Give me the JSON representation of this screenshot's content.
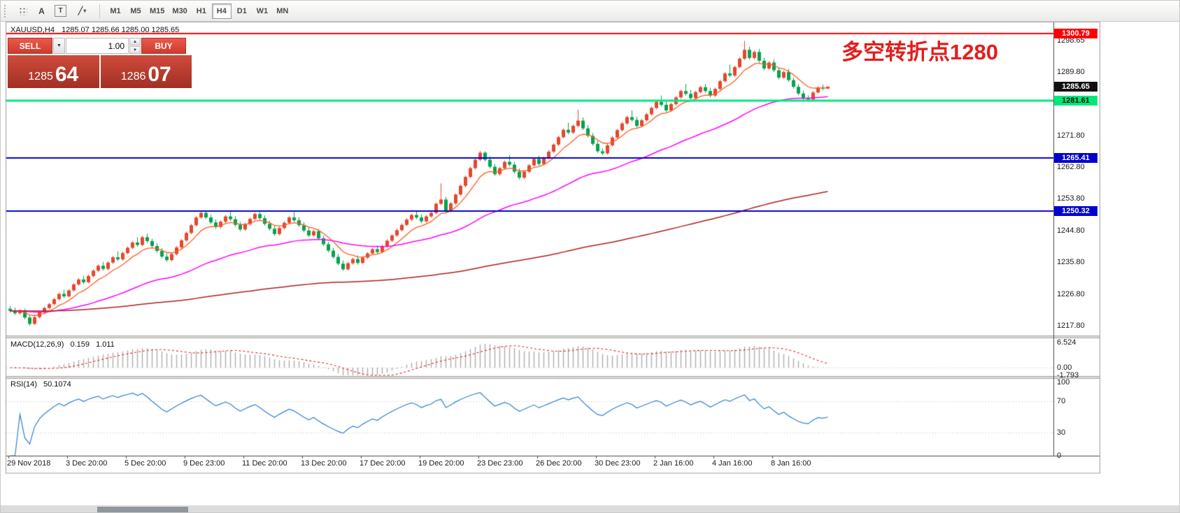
{
  "toolbar": {
    "tools": {
      "text_a": "A",
      "text_t": "T"
    },
    "timeframes": [
      {
        "label": "M1",
        "active": false
      },
      {
        "label": "M5",
        "active": false
      },
      {
        "label": "M15",
        "active": false
      },
      {
        "label": "M30",
        "active": false
      },
      {
        "label": "H1",
        "active": false
      },
      {
        "label": "H4",
        "active": true
      },
      {
        "label": "D1",
        "active": false
      },
      {
        "label": "W1",
        "active": false
      },
      {
        "label": "MN",
        "active": false
      }
    ]
  },
  "icons": {
    "dropdown_caret": "▼",
    "spinner_up": "▲",
    "spinner_down": "▼",
    "shapes_line": "╱",
    "shapes_caret": "▾"
  },
  "one_click": {
    "sell_label": "SELL",
    "buy_label": "BUY",
    "lot_value": "1.00",
    "sell_price_main": "1285",
    "sell_price_pips": "64",
    "buy_price_main": "1286",
    "buy_price_pips": "07"
  },
  "chart_data": {
    "type": "candlestick",
    "symbol": "XAUUSD",
    "timeframe": "H4",
    "window_title": "XAUUSD,H4",
    "ohlc_text": "1285.07 1285.66 1285.00 1285.65",
    "annotation": {
      "text": "多空转折点1280",
      "color": "#e51c1c"
    },
    "ylim": [
      1215.0,
      1303.5
    ],
    "y_tick_labels": [
      "1298.65",
      "1289.80",
      "1280.80",
      "1271.80",
      "1262.80",
      "1253.80",
      "1244.80",
      "1235.80",
      "1226.80",
      "1217.80"
    ],
    "x_tick_labels": [
      {
        "index": 0,
        "label": "29 Nov 2018"
      },
      {
        "index": 12,
        "label": "3 Dec 20:00"
      },
      {
        "index": 24,
        "label": "5 Dec 20:00"
      },
      {
        "index": 36,
        "label": "9 Dec 23:00"
      },
      {
        "index": 48,
        "label": "11 Dec 20:00"
      },
      {
        "index": 60,
        "label": "13 Dec 20:00"
      },
      {
        "index": 72,
        "label": "17 Dec 20:00"
      },
      {
        "index": 84,
        "label": "19 Dec 20:00"
      },
      {
        "index": 96,
        "label": "23 Dec 23:00"
      },
      {
        "index": 108,
        "label": "26 Dec 20:00"
      },
      {
        "index": 120,
        "label": "30 Dec 23:00"
      },
      {
        "index": 132,
        "label": "2 Jan 16:00"
      },
      {
        "index": 144,
        "label": "4 Jan 16:00"
      },
      {
        "index": 156,
        "label": "8 Jan 16:00"
      }
    ],
    "up_color": "#e5472e",
    "down_color": "#07a24e",
    "candles": [
      [
        1222.6,
        1223.4,
        1221.5,
        1222.0
      ],
      [
        1222.0,
        1222.9,
        1220.8,
        1221.3
      ],
      [
        1221.3,
        1222.5,
        1220.9,
        1222.1
      ],
      [
        1222.1,
        1222.6,
        1219.6,
        1220.1
      ],
      [
        1220.1,
        1220.7,
        1217.8,
        1218.3
      ],
      [
        1218.3,
        1220.6,
        1218.0,
        1220.2
      ],
      [
        1220.2,
        1222.0,
        1219.8,
        1221.6
      ],
      [
        1221.6,
        1223.2,
        1221.2,
        1222.8
      ],
      [
        1222.8,
        1224.3,
        1222.4,
        1223.9
      ],
      [
        1223.9,
        1225.7,
        1223.5,
        1225.3
      ],
      [
        1225.3,
        1227.2,
        1224.9,
        1226.8
      ],
      [
        1226.8,
        1228.0,
        1225.6,
        1226.1
      ],
      [
        1226.1,
        1228.2,
        1225.8,
        1227.8
      ],
      [
        1227.8,
        1229.9,
        1227.4,
        1229.5
      ],
      [
        1229.5,
        1231.3,
        1229.1,
        1230.9
      ],
      [
        1230.9,
        1232.0,
        1229.6,
        1230.1
      ],
      [
        1230.1,
        1232.3,
        1229.8,
        1231.9
      ],
      [
        1231.9,
        1233.8,
        1231.5,
        1233.4
      ],
      [
        1233.4,
        1235.2,
        1233.0,
        1234.8
      ],
      [
        1234.8,
        1235.9,
        1233.4,
        1233.9
      ],
      [
        1233.9,
        1236.1,
        1233.5,
        1235.7
      ],
      [
        1235.7,
        1237.6,
        1235.3,
        1237.2
      ],
      [
        1237.2,
        1238.9,
        1236.1,
        1236.6
      ],
      [
        1236.6,
        1238.8,
        1236.2,
        1238.4
      ],
      [
        1238.4,
        1240.3,
        1238.0,
        1239.9
      ],
      [
        1239.9,
        1241.8,
        1239.5,
        1241.4
      ],
      [
        1241.4,
        1242.9,
        1240.2,
        1240.7
      ],
      [
        1240.7,
        1243.3,
        1240.3,
        1242.9
      ],
      [
        1242.9,
        1243.9,
        1241.3,
        1241.8
      ],
      [
        1241.8,
        1242.5,
        1239.9,
        1240.4
      ],
      [
        1240.4,
        1241.2,
        1238.5,
        1239.0
      ],
      [
        1239.0,
        1239.8,
        1236.9,
        1237.4
      ],
      [
        1237.4,
        1238.3,
        1235.9,
        1236.4
      ],
      [
        1236.4,
        1238.5,
        1236.0,
        1238.1
      ],
      [
        1238.1,
        1240.4,
        1237.7,
        1240.0
      ],
      [
        1240.0,
        1242.4,
        1239.6,
        1242.0
      ],
      [
        1242.0,
        1244.5,
        1241.6,
        1244.1
      ],
      [
        1244.1,
        1246.7,
        1243.7,
        1246.3
      ],
      [
        1246.3,
        1248.9,
        1245.9,
        1248.5
      ],
      [
        1248.5,
        1250.2,
        1248.1,
        1249.8
      ],
      [
        1249.8,
        1250.3,
        1248.0,
        1248.5
      ],
      [
        1248.5,
        1249.3,
        1246.6,
        1247.1
      ],
      [
        1247.1,
        1248.0,
        1245.3,
        1245.8
      ],
      [
        1245.8,
        1247.7,
        1245.4,
        1247.3
      ],
      [
        1247.3,
        1249.2,
        1246.9,
        1248.8
      ],
      [
        1248.8,
        1250.1,
        1247.5,
        1248.0
      ],
      [
        1248.0,
        1248.9,
        1245.9,
        1246.4
      ],
      [
        1246.4,
        1247.3,
        1244.6,
        1245.1
      ],
      [
        1245.1,
        1247.0,
        1244.7,
        1246.6
      ],
      [
        1246.6,
        1248.5,
        1246.2,
        1248.1
      ],
      [
        1248.1,
        1249.9,
        1247.7,
        1249.5
      ],
      [
        1249.5,
        1250.2,
        1247.8,
        1248.3
      ],
      [
        1248.3,
        1249.1,
        1246.2,
        1246.7
      ],
      [
        1246.7,
        1247.6,
        1244.8,
        1245.3
      ],
      [
        1245.3,
        1246.1,
        1243.3,
        1243.8
      ],
      [
        1243.8,
        1245.9,
        1243.4,
        1245.5
      ],
      [
        1245.5,
        1247.4,
        1245.1,
        1247.0
      ],
      [
        1247.0,
        1248.9,
        1246.6,
        1248.5
      ],
      [
        1248.5,
        1250.0,
        1247.2,
        1247.7
      ],
      [
        1247.7,
        1248.5,
        1245.8,
        1246.3
      ],
      [
        1246.3,
        1247.1,
        1244.3,
        1244.8
      ],
      [
        1244.8,
        1245.7,
        1242.9,
        1243.4
      ],
      [
        1243.4,
        1245.0,
        1243.0,
        1244.6
      ],
      [
        1244.6,
        1245.2,
        1242.1,
        1242.6
      ],
      [
        1242.6,
        1243.3,
        1240.4,
        1240.9
      ],
      [
        1240.9,
        1241.6,
        1238.6,
        1239.1
      ],
      [
        1239.1,
        1239.9,
        1236.8,
        1237.3
      ],
      [
        1237.3,
        1238.1,
        1234.9,
        1235.4
      ],
      [
        1235.4,
        1236.3,
        1233.3,
        1233.8
      ],
      [
        1233.8,
        1235.9,
        1233.4,
        1235.5
      ],
      [
        1235.5,
        1237.1,
        1235.1,
        1236.7
      ],
      [
        1236.7,
        1237.7,
        1235.1,
        1235.6
      ],
      [
        1235.6,
        1237.5,
        1235.2,
        1237.1
      ],
      [
        1237.1,
        1238.7,
        1236.7,
        1238.3
      ],
      [
        1238.3,
        1239.9,
        1237.9,
        1239.5
      ],
      [
        1239.5,
        1240.6,
        1238.2,
        1238.7
      ],
      [
        1238.7,
        1240.8,
        1238.3,
        1240.4
      ],
      [
        1240.4,
        1242.3,
        1240.0,
        1241.9
      ],
      [
        1241.9,
        1243.8,
        1241.5,
        1243.4
      ],
      [
        1243.4,
        1245.3,
        1243.0,
        1244.9
      ],
      [
        1244.9,
        1246.8,
        1244.5,
        1246.4
      ],
      [
        1246.4,
        1248.3,
        1246.0,
        1247.9
      ],
      [
        1247.9,
        1249.6,
        1247.5,
        1249.2
      ],
      [
        1249.2,
        1250.3,
        1248.0,
        1248.5
      ],
      [
        1248.5,
        1249.4,
        1246.9,
        1247.4
      ],
      [
        1247.4,
        1249.2,
        1247.0,
        1248.8
      ],
      [
        1248.8,
        1250.2,
        1248.4,
        1249.8
      ],
      [
        1249.8,
        1252.8,
        1249.4,
        1252.4
      ],
      [
        1252.4,
        1258.2,
        1252.0,
        1253.6
      ],
      [
        1253.6,
        1254.4,
        1249.9,
        1250.4
      ],
      [
        1250.4,
        1252.9,
        1250.0,
        1252.5
      ],
      [
        1252.5,
        1255.4,
        1252.1,
        1255.0
      ],
      [
        1255.0,
        1257.9,
        1254.6,
        1257.5
      ],
      [
        1257.5,
        1260.4,
        1257.1,
        1260.0
      ],
      [
        1260.0,
        1262.9,
        1259.6,
        1262.5
      ],
      [
        1262.5,
        1265.3,
        1262.1,
        1264.9
      ],
      [
        1264.9,
        1267.4,
        1264.5,
        1266.9
      ],
      [
        1266.9,
        1267.3,
        1264.4,
        1264.9
      ],
      [
        1264.9,
        1265.8,
        1262.4,
        1262.9
      ],
      [
        1262.9,
        1263.7,
        1260.3,
        1260.8
      ],
      [
        1260.8,
        1262.9,
        1260.4,
        1262.5
      ],
      [
        1262.5,
        1264.7,
        1262.1,
        1264.3
      ],
      [
        1264.3,
        1266.2,
        1263.0,
        1263.5
      ],
      [
        1263.5,
        1264.3,
        1261.0,
        1261.5
      ],
      [
        1261.5,
        1262.4,
        1259.3,
        1259.8
      ],
      [
        1259.8,
        1261.9,
        1259.4,
        1261.5
      ],
      [
        1261.5,
        1263.7,
        1261.1,
        1263.3
      ],
      [
        1263.3,
        1265.5,
        1262.9,
        1265.1
      ],
      [
        1265.1,
        1266.0,
        1263.2,
        1263.7
      ],
      [
        1263.7,
        1265.8,
        1263.3,
        1265.4
      ],
      [
        1265.4,
        1267.6,
        1265.0,
        1267.2
      ],
      [
        1267.2,
        1269.6,
        1266.8,
        1269.2
      ],
      [
        1269.2,
        1271.7,
        1268.8,
        1271.3
      ],
      [
        1271.3,
        1273.8,
        1270.9,
        1273.4
      ],
      [
        1273.4,
        1275.4,
        1272.1,
        1272.6
      ],
      [
        1272.6,
        1274.9,
        1272.2,
        1274.5
      ],
      [
        1274.5,
        1279.1,
        1274.1,
        1276.0
      ],
      [
        1276.0,
        1276.9,
        1273.3,
        1273.8
      ],
      [
        1273.8,
        1274.7,
        1271.2,
        1271.7
      ],
      [
        1271.7,
        1272.5,
        1268.9,
        1269.4
      ],
      [
        1269.4,
        1270.3,
        1266.8,
        1267.3
      ],
      [
        1267.3,
        1268.1,
        1266.2,
        1266.7
      ],
      [
        1266.7,
        1269.4,
        1266.3,
        1269.0
      ],
      [
        1269.0,
        1271.6,
        1268.6,
        1271.2
      ],
      [
        1271.2,
        1273.7,
        1270.8,
        1273.3
      ],
      [
        1273.3,
        1275.6,
        1272.9,
        1275.2
      ],
      [
        1275.2,
        1277.4,
        1274.8,
        1277.0
      ],
      [
        1277.0,
        1278.9,
        1275.7,
        1276.2
      ],
      [
        1276.2,
        1277.1,
        1274.0,
        1274.5
      ],
      [
        1274.5,
        1276.5,
        1274.1,
        1276.1
      ],
      [
        1276.1,
        1278.2,
        1275.7,
        1277.8
      ],
      [
        1277.8,
        1280.0,
        1277.4,
        1279.6
      ],
      [
        1279.6,
        1281.7,
        1279.2,
        1281.3
      ],
      [
        1281.3,
        1283.1,
        1280.0,
        1280.5
      ],
      [
        1280.5,
        1281.6,
        1278.4,
        1278.9
      ],
      [
        1278.9,
        1281.1,
        1278.5,
        1280.7
      ],
      [
        1280.7,
        1283.0,
        1280.3,
        1282.6
      ],
      [
        1282.6,
        1284.8,
        1282.2,
        1284.4
      ],
      [
        1284.4,
        1286.4,
        1283.1,
        1283.6
      ],
      [
        1283.6,
        1284.7,
        1281.9,
        1282.4
      ],
      [
        1282.4,
        1284.5,
        1282.0,
        1284.1
      ],
      [
        1284.1,
        1285.9,
        1283.7,
        1285.5
      ],
      [
        1285.5,
        1286.4,
        1283.9,
        1284.4
      ],
      [
        1284.4,
        1285.3,
        1282.6,
        1283.1
      ],
      [
        1283.1,
        1285.4,
        1282.7,
        1285.0
      ],
      [
        1285.0,
        1287.6,
        1284.6,
        1287.2
      ],
      [
        1287.2,
        1289.8,
        1286.8,
        1289.4
      ],
      [
        1289.4,
        1291.9,
        1288.3,
        1288.8
      ],
      [
        1288.8,
        1291.6,
        1288.4,
        1291.2
      ],
      [
        1291.2,
        1294.0,
        1290.8,
        1293.6
      ],
      [
        1293.6,
        1298.65,
        1293.2,
        1296.1
      ],
      [
        1296.1,
        1297.0,
        1293.3,
        1293.8
      ],
      [
        1293.8,
        1295.9,
        1293.4,
        1295.5
      ],
      [
        1295.5,
        1296.3,
        1292.5,
        1293.0
      ],
      [
        1293.0,
        1293.9,
        1290.3,
        1290.8
      ],
      [
        1290.8,
        1292.9,
        1290.4,
        1292.5
      ],
      [
        1292.5,
        1293.4,
        1289.8,
        1290.3
      ],
      [
        1290.3,
        1291.1,
        1287.7,
        1288.2
      ],
      [
        1288.2,
        1290.2,
        1287.8,
        1289.8
      ],
      [
        1289.8,
        1290.7,
        1287.0,
        1287.5
      ],
      [
        1287.5,
        1288.3,
        1285.1,
        1285.6
      ],
      [
        1285.6,
        1286.4,
        1283.2,
        1283.7
      ],
      [
        1283.7,
        1284.5,
        1281.9,
        1282.4
      ],
      [
        1282.4,
        1283.2,
        1281.5,
        1282.0
      ],
      [
        1282.0,
        1284.4,
        1281.7,
        1284.0
      ],
      [
        1284.0,
        1285.8,
        1283.6,
        1285.4
      ],
      [
        1285.4,
        1286.2,
        1284.6,
        1285.07
      ],
      [
        1285.07,
        1285.66,
        1285.0,
        1285.65
      ]
    ],
    "overlays": [
      {
        "name": "ma-fast",
        "type": "ema",
        "period": 8,
        "color": "#ff5a1e",
        "width": 1.3
      },
      {
        "name": "ma-mid",
        "type": "ema",
        "period": 45,
        "color": "#ff00ff",
        "width": 1.5
      },
      {
        "name": "ma-slow",
        "type": "ema",
        "period": 220,
        "color": "#b01e1e",
        "width": 1.5
      }
    ],
    "hlines": [
      {
        "price": 1300.79,
        "label": "1300.79",
        "color": "#ff0000",
        "width": 2,
        "badge_bg": "#ff0000",
        "badge_fg": "#ffffff"
      },
      {
        "price": 1281.61,
        "label": "1281.61",
        "color": "#00e87a",
        "width": 3,
        "badge_bg": "#00e87a",
        "badge_fg": "#0a0a0a"
      },
      {
        "price": 1265.41,
        "label": "1265.41",
        "color": "#0000cd",
        "width": 2,
        "badge_bg": "#0000cd",
        "badge_fg": "#ffffff"
      },
      {
        "price": 1250.32,
        "label": "1250.32",
        "color": "#0000cd",
        "width": 2,
        "badge_bg": "#0000cd",
        "badge_fg": "#ffffff"
      }
    ],
    "current_price": {
      "value": 1285.65,
      "label": "1285.65",
      "badge_bg": "#101010",
      "badge_fg": "#ffffff"
    },
    "macd": {
      "label": "MACD(12,26,9)",
      "value_main": "0.159",
      "value_signal": "1.011",
      "params": [
        12,
        26,
        9
      ],
      "axis_labels": [
        "6.524",
        "0.00",
        "-1.793"
      ],
      "histogram_color": "#adadad",
      "signal_color": "#e32727"
    },
    "rsi": {
      "label": "RSI(14)",
      "value": "50.1074",
      "params": [
        14
      ],
      "axis_labels": [
        "100",
        "70",
        "30",
        "0"
      ],
      "levels": [
        70,
        30
      ],
      "range": [
        0,
        100
      ],
      "line_color": "#2f7fd1"
    }
  }
}
